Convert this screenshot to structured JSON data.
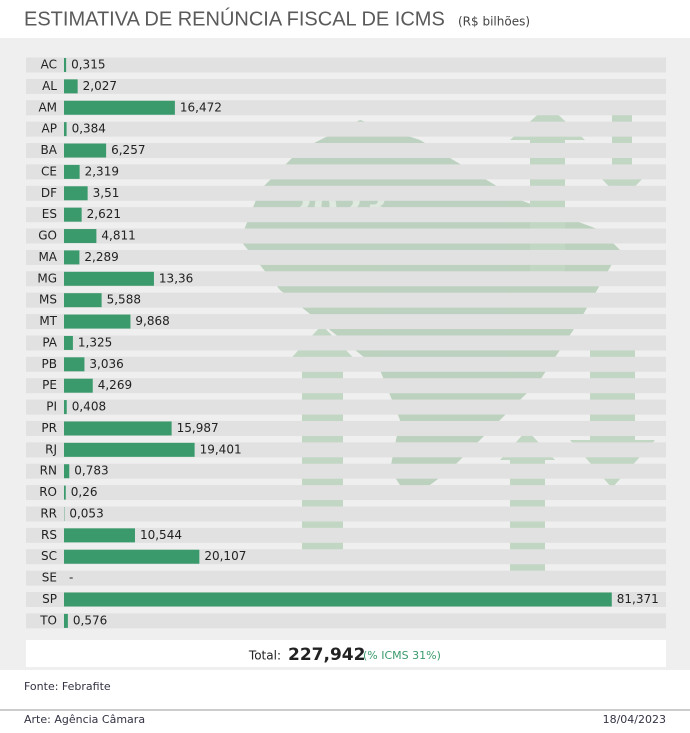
{
  "chart_data": {
    "type": "bar",
    "orientation": "horizontal",
    "title": "ESTIMATIVA DE RENÚNCIA FISCAL DE ICMS",
    "subtitle": "(R$ bilhões)",
    "categories": [
      "AC",
      "AL",
      "AM",
      "AP",
      "BA",
      "CE",
      "DF",
      "ES",
      "GO",
      "MA",
      "MG",
      "MS",
      "MT",
      "PA",
      "PB",
      "PE",
      "PI",
      "PR",
      "RJ",
      "RN",
      "RO",
      "RR",
      "RS",
      "SC",
      "SE",
      "SP",
      "TO"
    ],
    "values": [
      0.315,
      2.027,
      16.472,
      0.384,
      6.257,
      2.319,
      3.51,
      2.621,
      4.811,
      2.289,
      13.36,
      5.588,
      9.868,
      1.325,
      3.036,
      4.269,
      0.408,
      15.987,
      19.401,
      0.783,
      0.26,
      0.053,
      10.544,
      20.107,
      null,
      81.371,
      0.576
    ],
    "value_labels": [
      "0,315",
      "2,027",
      "16,472",
      "0,384",
      "6,257",
      "2,319",
      "3,51",
      "2,621",
      "4,811",
      "2,289",
      "13,36",
      "5,588",
      "9,868",
      "1,325",
      "3,036",
      "4,269",
      "0,408",
      "15,987",
      "19,401",
      "0,783",
      "0,26",
      "0,053",
      "10,544",
      "20,107",
      "-",
      "81,371",
      "0,576"
    ],
    "color": "#3a9a6c",
    "xlim": [
      0,
      82
    ],
    "image_text": "2023",
    "total_label": "Total:",
    "total_value": "227,942",
    "total_note": "(% ICMS 31%)",
    "source": "Fonte: Febrafite",
    "credit": "Arte: Agência Câmara",
    "date": "18/04/2023"
  }
}
